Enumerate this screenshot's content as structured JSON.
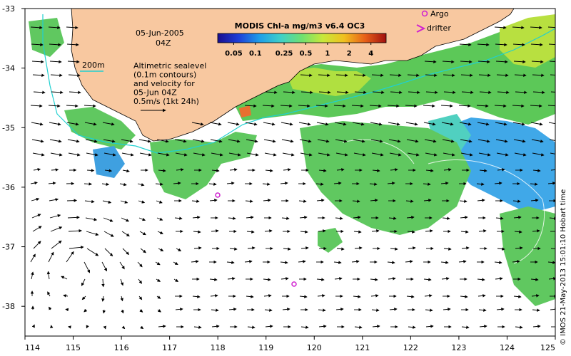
{
  "map": {
    "date": "05-Jun-2005",
    "time": "04Z",
    "isobath_label": "200m",
    "sealevel_note": [
      "Altimetric sealevel",
      "(0.1m contours)",
      "and velocity for",
      "05-Jun 04Z",
      "0.5m/s (1kt 24h)"
    ],
    "credit": "© IMOS 21-May-2013 15:01:10 Hobart time"
  },
  "colorbar": {
    "title": "MODIS Chl-a mg/m3 v6.4 OC3",
    "labels": [
      "0.05",
      "0.1",
      "0.25",
      "0.5",
      "1",
      "2",
      "4"
    ],
    "colors": [
      "#1a0f8f",
      "#1f3fd8",
      "#1f9fe8",
      "#3fd0c8",
      "#6fe070",
      "#c8e83a",
      "#f0c020",
      "#e86018",
      "#a01010"
    ]
  },
  "legend": {
    "argo_label": "Argo",
    "drifter_label": "drifter",
    "argo_color": "#d020d0",
    "drifter_color": "#d020d0"
  },
  "axes": {
    "x_ticks": [
      "114",
      "115",
      "116",
      "117",
      "118",
      "119",
      "120",
      "121",
      "122",
      "123",
      "124",
      "125"
    ],
    "y_ticks": [
      "-33",
      "-34",
      "-35",
      "-36",
      "-37",
      "-38"
    ]
  },
  "colors": {
    "land": "#f8c8a0",
    "isobath": "#20d0d0",
    "ocean": "#ffffff"
  }
}
